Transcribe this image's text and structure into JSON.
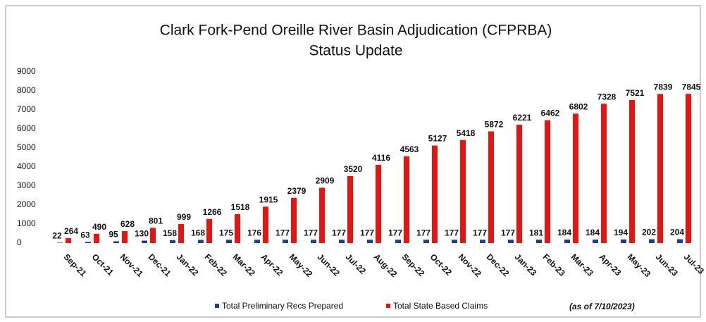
{
  "chart_data": {
    "type": "bar",
    "title": "Clark Fork-Pend Oreille River Basin Adjudication (CFPRBA)",
    "subtitle": "Status Update",
    "annotation": "(as of 7/10/2023)",
    "categories": [
      "Sep-21",
      "Oct-21",
      "Nov-21",
      "Dec-21",
      "Jan-22",
      "Feb-22",
      "Mar-22",
      "Apr-22",
      "May-22",
      "Jun-22",
      "Jul-22",
      "Aug-22",
      "Sep-22",
      "Oct-22",
      "Nov-22",
      "Dec-22",
      "Jan-23",
      "Feb-23",
      "Mar-23",
      "Apr-23",
      "May-23",
      "Jun-23",
      "Jul-23"
    ],
    "series": [
      {
        "name": "Total Preliminary Recs Prepared",
        "color": "#1f3d8a",
        "values": [
          22,
          63,
          95,
          130,
          158,
          168,
          175,
          176,
          177,
          177,
          177,
          177,
          177,
          177,
          177,
          177,
          177,
          181,
          184,
          184,
          194,
          202,
          204
        ]
      },
      {
        "name": "Total State Based Claims",
        "color": "#e8140f",
        "values": [
          264,
          490,
          628,
          801,
          999,
          1266,
          1518,
          1915,
          2379,
          2909,
          3520,
          4116,
          4563,
          5127,
          5418,
          5872,
          6221,
          6462,
          6802,
          7328,
          7521,
          7839,
          7845
        ]
      }
    ],
    "ylim": [
      0,
      9000
    ],
    "yticks": [
      0,
      1000,
      2000,
      3000,
      4000,
      5000,
      6000,
      7000,
      8000,
      9000
    ],
    "grid": false
  }
}
